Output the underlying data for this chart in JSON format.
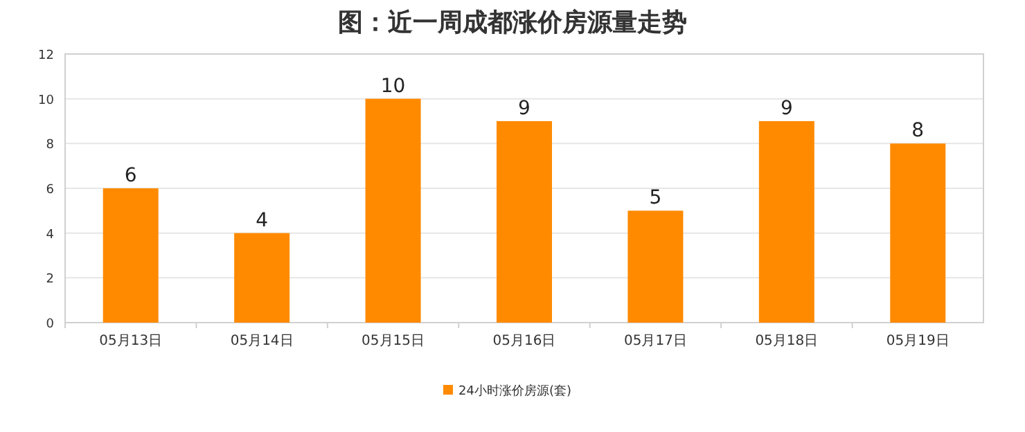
{
  "chart_data": {
    "type": "bar",
    "title": "图：近一周成都涨价房源量走势",
    "categories": [
      "05月13日",
      "05月14日",
      "05月15日",
      "05月16日",
      "05月17日",
      "05月18日",
      "05月19日"
    ],
    "series": [
      {
        "name": "24小时涨价房源(套)",
        "color": "#ff8a00",
        "values": [
          6,
          4,
          10,
          9,
          5,
          9,
          8
        ]
      }
    ],
    "ylim": [
      0,
      12
    ],
    "yticks": [
      0,
      2,
      4,
      6,
      8,
      10,
      12
    ],
    "grid": "y",
    "legend": "bottom",
    "data_labels": true
  }
}
